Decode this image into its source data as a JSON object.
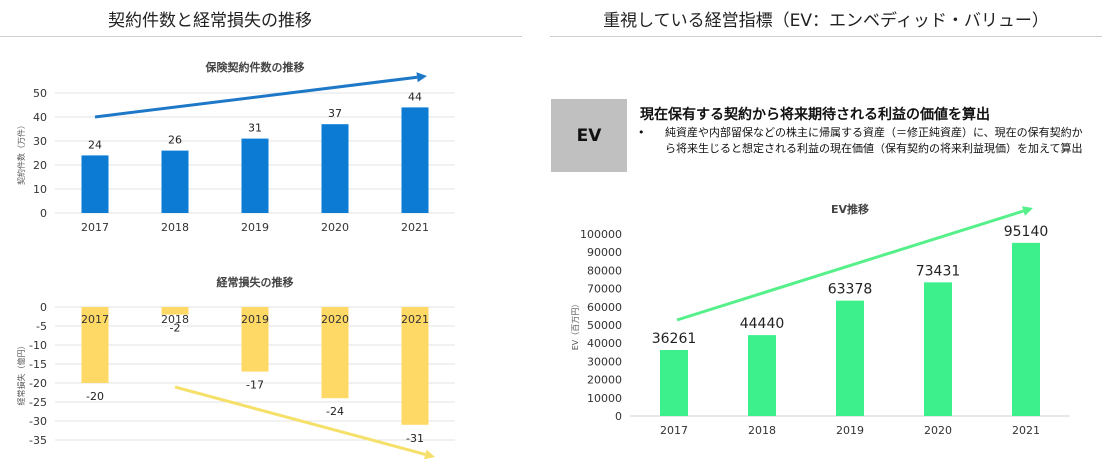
{
  "left_title": "契約件数と経常損失の推移",
  "right_title": "重視している経営指標（EV：エンベディッド・バリュー）",
  "ev_box_label": "EV",
  "ev_heading": "現在保有する契約から将来期待される利益の価値を算出",
  "ev_bullet_marker": "•",
  "ev_bullet": "純資産や内部留保などの株主に帰属する資産（＝修正純資産）に、現在の保有契約から将来生じると想定される利益の現在価値（保有契約の将来利益現価）を加えて算出",
  "chart_data": [
    {
      "type": "bar",
      "title": "保険契約件数の推移",
      "ylabel": "契約件数（万件）",
      "categories": [
        "2017",
        "2018",
        "2019",
        "2020",
        "2021"
      ],
      "values": [
        24,
        26,
        31,
        37,
        44
      ],
      "ylim": [
        0,
        50
      ],
      "yticks": [
        "0",
        "10",
        "20",
        "30",
        "40",
        "50"
      ],
      "grid": true,
      "bar_color": "#0b7bd4",
      "trend_arrow": "up",
      "trend_color": "#1e78c8"
    },
    {
      "type": "bar",
      "title": "経常損失の推移",
      "ylabel": "経常損失（億円）",
      "categories": [
        "2017",
        "2018",
        "2019",
        "2020",
        "2021"
      ],
      "values": [
        -20,
        -2,
        -17,
        -24,
        -31
      ],
      "ylim": [
        -35,
        0
      ],
      "yticks": [
        "0",
        "-5",
        "-10",
        "-15",
        "-20",
        "-25",
        "-30",
        "-35"
      ],
      "grid": true,
      "bar_color": "#ffd966",
      "trend_arrow": "down",
      "trend_color": "#f5e06a"
    },
    {
      "type": "bar",
      "title": "EV推移",
      "ylabel": "EV（百万円）",
      "categories": [
        "2017",
        "2018",
        "2019",
        "2020",
        "2021"
      ],
      "values": [
        36261,
        44440,
        63378,
        73431,
        95140
      ],
      "ylim": [
        0,
        100000
      ],
      "yticks": [
        "0",
        "10000",
        "20000",
        "30000",
        "40000",
        "50000",
        "60000",
        "70000",
        "80000",
        "90000",
        "100000"
      ],
      "grid": false,
      "bar_color": "#3ef08c",
      "trend_arrow": "up",
      "trend_color": "#55f08a"
    }
  ]
}
